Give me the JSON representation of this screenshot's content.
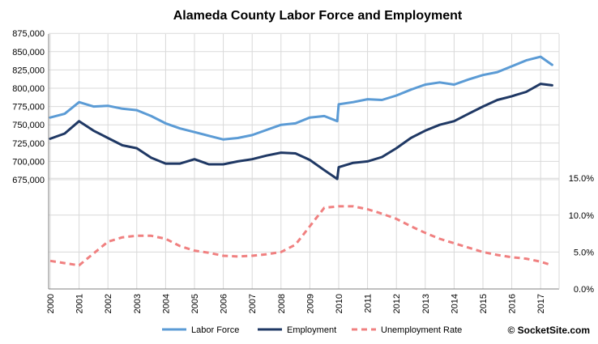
{
  "chart_data": {
    "type": "line",
    "title": "Alameda County Labor Force and Employment",
    "x_tick_labels": [
      "2000",
      "2001",
      "2002",
      "2003",
      "2004",
      "2005",
      "2006",
      "2007",
      "2008",
      "2009",
      "2010",
      "2011",
      "2012",
      "2013",
      "2014",
      "2015",
      "2016",
      "2017"
    ],
    "left_axis": {
      "tick_labels": [
        "675,000",
        "700,000",
        "725,000",
        "750,000",
        "775,000",
        "800,000",
        "825,000",
        "850,000",
        "875,000"
      ],
      "ticks": [
        675000,
        700000,
        725000,
        750000,
        775000,
        800000,
        825000,
        850000,
        875000
      ],
      "ylim": [
        675000,
        875000
      ]
    },
    "right_axis": {
      "tick_labels": [
        "0.0%",
        "5.0%",
        "10.0%",
        "15.0%"
      ],
      "ticks": [
        0,
        5,
        10,
        15
      ],
      "ylim": [
        0,
        15
      ]
    },
    "grid": true,
    "legend_position": "bottom",
    "credit": "© SocketSite.com",
    "colors": {
      "labor_force": "#5b9bd5",
      "employment": "#1f3864",
      "unemployment": "#f08080",
      "grid": "#d9d9d9"
    },
    "series": [
      {
        "name": "Labor Force",
        "axis": "left",
        "style": "solid",
        "x": [
          2000.0,
          2000.5,
          2001.0,
          2001.5,
          2002.0,
          2002.5,
          2003.0,
          2003.5,
          2004.0,
          2004.5,
          2005.0,
          2005.5,
          2006.0,
          2006.5,
          2007.0,
          2007.5,
          2008.0,
          2008.5,
          2009.0,
          2009.5,
          2009.95,
          2010.0,
          2010.5,
          2011.0,
          2011.5,
          2012.0,
          2012.5,
          2013.0,
          2013.5,
          2014.0,
          2014.5,
          2015.0,
          2015.5,
          2016.0,
          2016.5,
          2017.0,
          2017.4
        ],
        "values": [
          760000,
          765000,
          781000,
          775000,
          776000,
          772000,
          770000,
          762000,
          752000,
          745000,
          740000,
          735000,
          730000,
          732000,
          736000,
          743000,
          750000,
          752000,
          760000,
          762000,
          755000,
          778000,
          781000,
          785000,
          784000,
          790000,
          798000,
          805000,
          808000,
          805000,
          812000,
          818000,
          822000,
          830000,
          838000,
          843000,
          832000
        ]
      },
      {
        "name": "Employment",
        "axis": "left",
        "style": "solid",
        "x": [
          2000.0,
          2000.5,
          2001.0,
          2001.5,
          2002.0,
          2002.5,
          2003.0,
          2003.5,
          2004.0,
          2004.5,
          2005.0,
          2005.5,
          2006.0,
          2006.5,
          2007.0,
          2007.5,
          2008.0,
          2008.5,
          2009.0,
          2009.5,
          2009.95,
          2010.0,
          2010.5,
          2011.0,
          2011.5,
          2012.0,
          2012.5,
          2013.0,
          2013.5,
          2014.0,
          2014.5,
          2015.0,
          2015.5,
          2016.0,
          2016.5,
          2017.0,
          2017.4
        ],
        "values": [
          731000,
          738000,
          755000,
          742000,
          732000,
          722000,
          718000,
          705000,
          697000,
          697000,
          703000,
          696000,
          696000,
          700000,
          703000,
          708000,
          712000,
          711000,
          702000,
          688000,
          676000,
          692000,
          698000,
          700000,
          706000,
          718000,
          732000,
          742000,
          750000,
          755000,
          765000,
          775000,
          784000,
          789000,
          795000,
          806000,
          804000
        ]
      },
      {
        "name": "Unemployment Rate",
        "axis": "right",
        "style": "dashed",
        "x": [
          2000.0,
          2000.5,
          2001.0,
          2001.5,
          2002.0,
          2002.5,
          2003.0,
          2003.5,
          2004.0,
          2004.5,
          2005.0,
          2005.5,
          2006.0,
          2006.5,
          2007.0,
          2007.5,
          2008.0,
          2008.5,
          2009.0,
          2009.5,
          2010.0,
          2010.5,
          2011.0,
          2011.5,
          2012.0,
          2012.5,
          2013.0,
          2013.5,
          2014.0,
          2014.5,
          2015.0,
          2015.5,
          2016.0,
          2016.5,
          2017.0,
          2017.4
        ],
        "values": [
          3.8,
          3.5,
          3.2,
          4.8,
          6.4,
          7.0,
          7.2,
          7.2,
          6.8,
          5.8,
          5.2,
          4.9,
          4.5,
          4.4,
          4.5,
          4.7,
          5.0,
          6.0,
          8.5,
          11.0,
          11.2,
          11.2,
          10.8,
          10.2,
          9.5,
          8.5,
          7.6,
          6.8,
          6.2,
          5.6,
          5.0,
          4.6,
          4.3,
          4.1,
          3.7,
          3.2
        ]
      }
    ]
  }
}
